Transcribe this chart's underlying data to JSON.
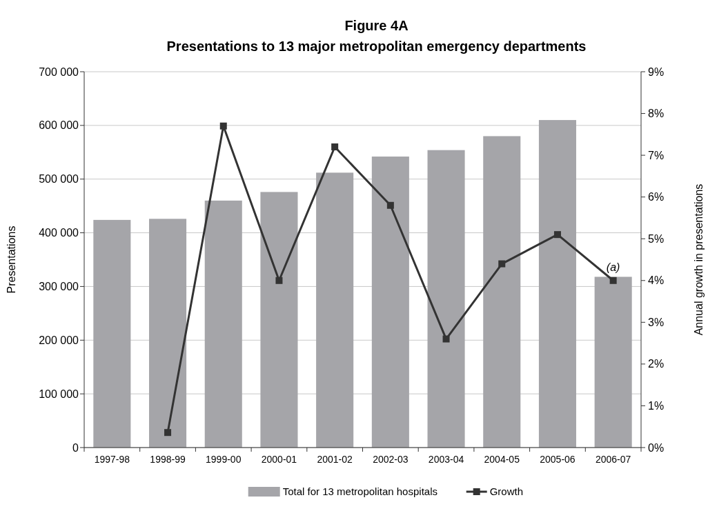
{
  "chart_data": {
    "type": "bar",
    "title": "Figure 4A",
    "subtitle": "Presentations to 13 major metropolitan emergency departments",
    "ylabel": "Presentations",
    "y2label": "Annual growth in presentations",
    "categories": [
      "1997-98",
      "1998-99",
      "1999-00",
      "2000-01",
      "2001-02",
      "2002-03",
      "2003-04",
      "2004-05",
      "2005-06",
      "2006-07"
    ],
    "series": [
      {
        "name": "Total for 13 metropolitan hospitals",
        "color": "#a5a5a9",
        "values": [
          424000,
          426000,
          460000,
          476000,
          512000,
          542000,
          554000,
          580000,
          610000,
          318000
        ]
      },
      {
        "name": "Growth",
        "type": "line",
        "axis": "y2",
        "color": "#333333",
        "marker": "square",
        "values": [
          null,
          0.36,
          7.7,
          4.0,
          7.2,
          5.8,
          2.6,
          4.4,
          5.1,
          4.0
        ]
      }
    ],
    "ylim": [
      0,
      700000
    ],
    "yticks": [
      {
        "value": 0,
        "label": "0"
      },
      {
        "value": 100000,
        "label": "100 000"
      },
      {
        "value": 200000,
        "label": "200 000"
      },
      {
        "value": 300000,
        "label": "300 000"
      },
      {
        "value": 400000,
        "label": "400 000"
      },
      {
        "value": 500000,
        "label": "500 000"
      },
      {
        "value": 600000,
        "label": "600 000"
      },
      {
        "value": 700000,
        "label": "700 000"
      }
    ],
    "y2lim": [
      0,
      9
    ],
    "y2ticks": [
      {
        "value": 0,
        "label": "0%"
      },
      {
        "value": 1,
        "label": "1%"
      },
      {
        "value": 2,
        "label": "2%"
      },
      {
        "value": 3,
        "label": "3%"
      },
      {
        "value": 4,
        "label": "4%"
      },
      {
        "value": 5,
        "label": "5%"
      },
      {
        "value": 6,
        "label": "6%"
      },
      {
        "value": 7,
        "label": "7%"
      },
      {
        "value": 8,
        "label": "8%"
      },
      {
        "value": 9,
        "label": "9%"
      }
    ],
    "annotations": [
      "(a)"
    ],
    "grid": "y",
    "legend": "bottom"
  }
}
